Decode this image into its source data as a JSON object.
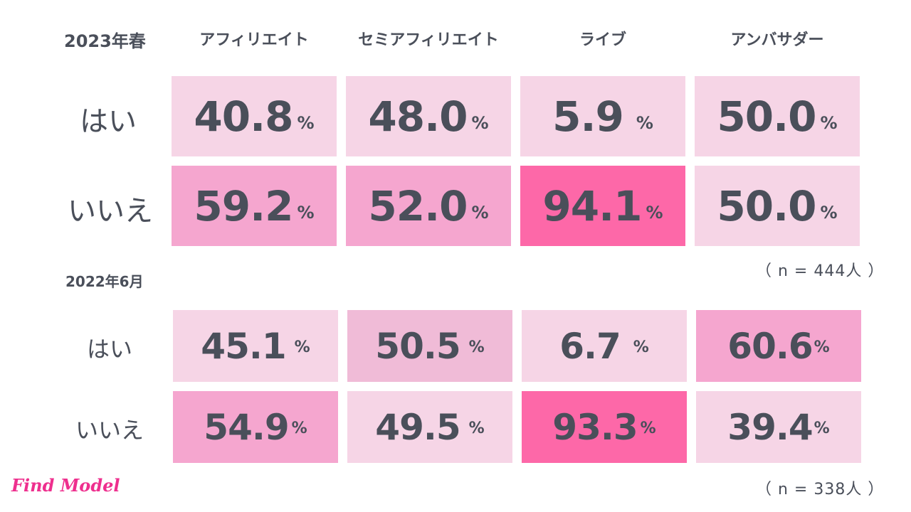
{
  "chart_data": [
    {
      "type": "table",
      "title": "2023年春",
      "columns": [
        "アフィリエイト",
        "セミアフィリエイト",
        "ライブ",
        "アンバサダー"
      ],
      "rows": [
        {
          "label": "はい",
          "values": [
            "40.8",
            "48.0",
            "5.9",
            "50.0"
          ]
        },
        {
          "label": "いいえ",
          "values": [
            "59.2",
            "52.0",
            "94.1",
            "50.0"
          ]
        }
      ],
      "unit": "%",
      "sample": "（ n = 444人 ）"
    },
    {
      "type": "table",
      "title": "2022年6月",
      "rows": [
        {
          "label": "はい",
          "values": [
            "45.1",
            "50.5",
            "6.7",
            "60.6"
          ]
        },
        {
          "label": "いいえ",
          "values": [
            "54.9",
            "49.5",
            "93.3",
            "39.4"
          ]
        }
      ],
      "unit": "%",
      "sample": "（ n = 338人 ）"
    }
  ],
  "colors": {
    "light": "#f6d5e6",
    "mid": "#f0bbd7",
    "medium": "#f5a6cf",
    "strong": "#fd68a8",
    "text": "#4a4f5a",
    "brand": "#ee2f8e"
  },
  "logo": "Find Model"
}
